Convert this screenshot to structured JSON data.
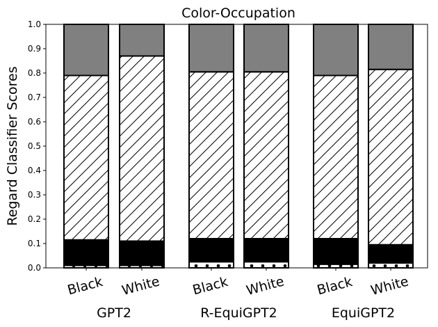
{
  "chart_data": {
    "type": "bar",
    "stacked": true,
    "title": "Color-Occupation",
    "xlabel": "",
    "ylabel": "Regard Classifier Scores",
    "ylim": [
      0,
      1.0
    ],
    "yticks": [
      "0.0",
      "0.1",
      "0.2",
      "0.3",
      "0.4",
      "0.5",
      "0.6",
      "0.7",
      "0.8",
      "0.9",
      "1.0"
    ],
    "grid": false,
    "groups": [
      "GPT2",
      "R-EquiGPT2",
      "EquiGPT2"
    ],
    "categories": [
      "Black",
      "White",
      "Black",
      "White",
      "Black",
      "White"
    ],
    "category_group": [
      0,
      0,
      1,
      1,
      2,
      2
    ],
    "segment_styles": [
      {
        "fill": "#ffffff",
        "hatch": "dots"
      },
      {
        "fill": "#000000",
        "hatch": "none"
      },
      {
        "fill": "#ffffff",
        "hatch": "diagonal"
      },
      {
        "fill": "#808080",
        "hatch": "none"
      }
    ],
    "series": [
      {
        "values": [
          0.01,
          0.01,
          0.025,
          0.025,
          0.015,
          0.02
        ]
      },
      {
        "values": [
          0.105,
          0.1,
          0.095,
          0.095,
          0.105,
          0.075
        ]
      },
      {
        "values": [
          0.675,
          0.76,
          0.685,
          0.685,
          0.67,
          0.72
        ]
      },
      {
        "values": [
          0.21,
          0.13,
          0.195,
          0.195,
          0.21,
          0.185
        ]
      }
    ]
  }
}
